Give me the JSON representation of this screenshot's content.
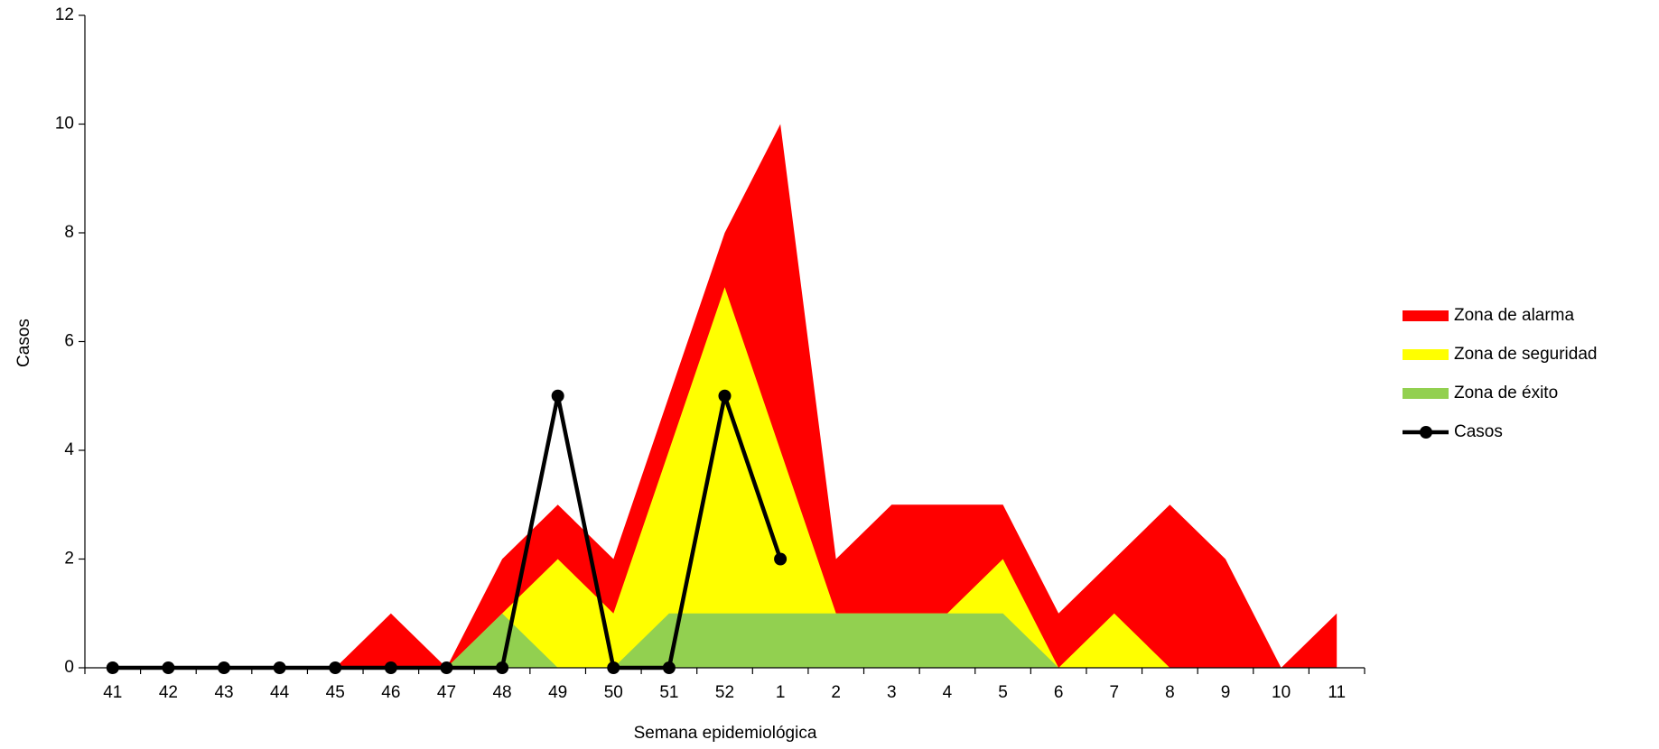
{
  "chart_data": {
    "type": "area-line",
    "x_label": "Semana epidemiológica",
    "y_label": "Casos",
    "categories": [
      "41",
      "42",
      "43",
      "44",
      "45",
      "46",
      "47",
      "48",
      "49",
      "50",
      "51",
      "52",
      "1",
      "2",
      "3",
      "4",
      "5",
      "6",
      "7",
      "8",
      "9",
      "10",
      "11"
    ],
    "series": [
      {
        "name": "Zona de alarma",
        "color": "#ff0000",
        "kind": "area",
        "values": [
          0,
          0,
          0,
          0,
          0,
          1,
          0,
          2,
          3,
          2,
          5,
          8,
          10,
          2,
          3,
          3,
          3,
          1,
          2,
          3,
          2,
          0,
          1
        ]
      },
      {
        "name": "Zona de seguridad",
        "color": "#ffff00",
        "kind": "area",
        "values": [
          0,
          0,
          0,
          0,
          0,
          0,
          0,
          1,
          2,
          1,
          4,
          7,
          4,
          1,
          1,
          1,
          2,
          0,
          1,
          0,
          0,
          0,
          0
        ]
      },
      {
        "name": "Zona de éxito",
        "color": "#92d050",
        "kind": "area",
        "values": [
          0,
          0,
          0,
          0,
          0,
          0,
          0,
          1,
          0,
          0,
          1,
          1,
          1,
          1,
          1,
          1,
          1,
          0,
          0,
          0,
          0,
          0,
          0
        ]
      },
      {
        "name": "Casos",
        "color": "#000000",
        "kind": "line",
        "values": [
          0,
          0,
          0,
          0,
          0,
          0,
          0,
          0,
          5,
          0,
          0,
          5,
          2,
          null,
          null,
          null,
          null,
          null,
          null,
          null,
          null,
          null,
          null
        ]
      }
    ],
    "ylim": [
      0,
      12
    ],
    "yticks": [
      0,
      2,
      4,
      6,
      8,
      10,
      12
    ],
    "legend": "right"
  }
}
